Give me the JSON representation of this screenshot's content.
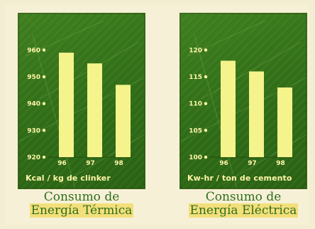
{
  "chart_data": [
    {
      "type": "bar",
      "categories": [
        "96",
        "97",
        "98"
      ],
      "values": [
        959,
        955,
        947
      ],
      "yticks": [
        920,
        930,
        940,
        950,
        960
      ],
      "ylim": [
        920,
        963
      ],
      "xlabel": "Kcal / kg de clinker",
      "colors": {
        "bar": "#f4f38c",
        "text": "#fff6a8"
      }
    },
    {
      "type": "bar",
      "categories": [
        "96",
        "97",
        "98"
      ],
      "values": [
        118,
        116,
        113
      ],
      "yticks": [
        100,
        105,
        110,
        115,
        120
      ],
      "ylim": [
        100,
        121.5
      ],
      "xlabel": "Kw-hr / ton de cemento",
      "colors": {
        "bar": "#f4f38c",
        "text": "#fff6a8"
      }
    }
  ],
  "captions": [
    {
      "line1": "Consumo de",
      "line2": "Energía Térmica"
    },
    {
      "line1": "Consumo de",
      "line2": "Energía Eléctrica"
    }
  ]
}
